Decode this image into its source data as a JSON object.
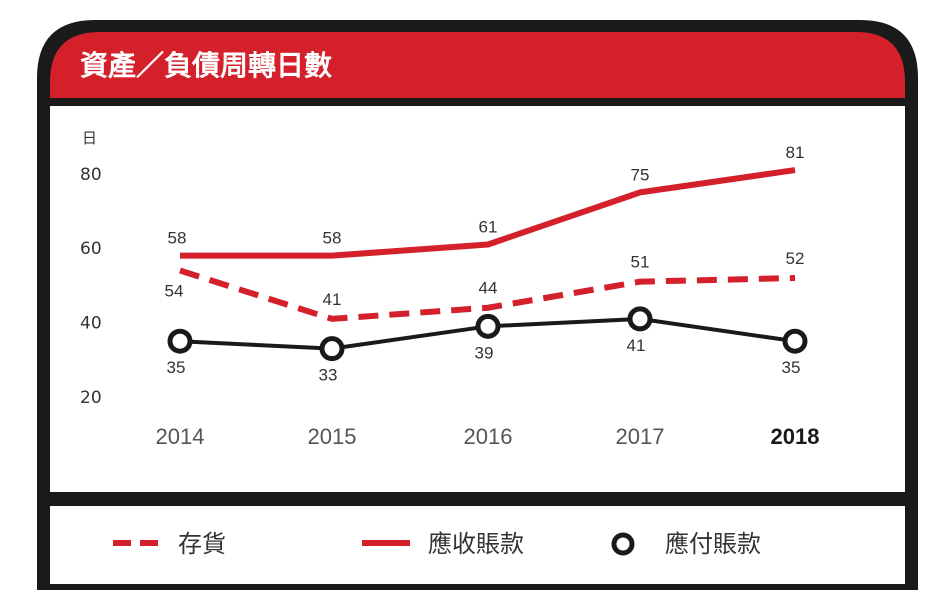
{
  "chart_data": {
    "type": "line",
    "title": "資產／負債周轉日數",
    "ylabel": "日",
    "xlabel": "",
    "ylim": [
      20,
      85
    ],
    "y_ticks": [
      "80",
      "60",
      "40",
      "20"
    ],
    "categories": [
      "2014",
      "2015",
      "2016",
      "2017",
      "2018"
    ],
    "highlight_category": "2018",
    "series": [
      {
        "name": "存貨",
        "style": "dashed",
        "color": "#d3202a",
        "values": [
          54,
          41,
          44,
          51,
          52
        ]
      },
      {
        "name": "應收賬款",
        "style": "solid",
        "color": "#d3202a",
        "values": [
          58,
          58,
          61,
          75,
          81
        ]
      },
      {
        "name": "應付賬款",
        "style": "marker",
        "color": "#1a1a1a",
        "values": [
          35,
          33,
          39,
          41,
          35
        ]
      }
    ],
    "legend": [
      "存貨",
      "應收賬款",
      "應付賬款"
    ]
  },
  "colors": {
    "accent": "#d3202a",
    "frame": "#1a1a1a",
    "text": "#333333"
  }
}
